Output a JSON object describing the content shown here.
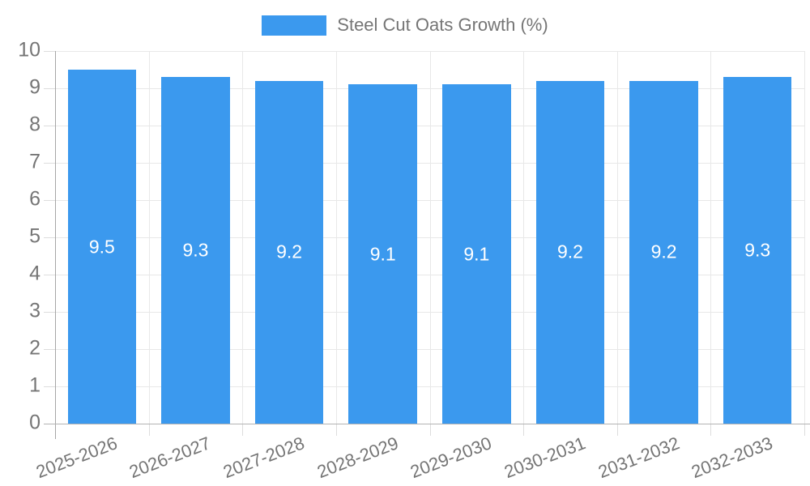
{
  "legend": {
    "label": "Steel Cut Oats Growth (%)",
    "swatch_color": "#3b99ee"
  },
  "chart_data": {
    "type": "bar",
    "title": "Steel Cut Oats Growth (%)",
    "categories": [
      "2025-2026",
      "2026-2027",
      "2027-2028",
      "2028-2029",
      "2029-2030",
      "2030-2031",
      "2031-2032",
      "2032-2033"
    ],
    "values": [
      9.5,
      9.3,
      9.2,
      9.1,
      9.1,
      9.2,
      9.2,
      9.3
    ],
    "value_labels": [
      "9.5",
      "9.3",
      "9.2",
      "9.1",
      "9.1",
      "9.2",
      "9.2",
      "9.3"
    ],
    "yticks": [
      0,
      1,
      2,
      3,
      4,
      5,
      6,
      7,
      8,
      9,
      10
    ],
    "ylim": [
      0,
      10
    ],
    "xlabel": "",
    "ylabel": "",
    "bar_color": "#3b99ee",
    "value_label_color": "#ffffff",
    "grid": true,
    "legend_position": "top"
  }
}
